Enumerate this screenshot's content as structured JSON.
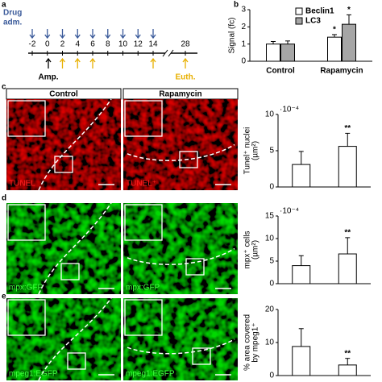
{
  "panel_labels": [
    "a",
    "b",
    "c",
    "d",
    "e"
  ],
  "timeline": {
    "drug_label": [
      "Drug",
      "adm."
    ],
    "ticks": [
      -2,
      0,
      2,
      4,
      6,
      8,
      10,
      12,
      14,
      28
    ],
    "amp_label": "Amp.",
    "euth_label": "Euth."
  },
  "images": {
    "columns": [
      "Control",
      "Rapamycin"
    ],
    "rows": [
      {
        "labels": [
          "TUNEL",
          "TUNEL⁺"
        ]
      },
      {
        "labels": [
          "mpx:GFP",
          "mpx:GFP"
        ]
      },
      {
        "labels": [
          "mpeg1:EGFP",
          "mpeg1:EGFP"
        ]
      }
    ]
  },
  "chart_data": [
    {
      "type": "bar",
      "y_label": [
        "Signal (fc)"
      ],
      "categories": [
        "Control",
        "Rapamycin"
      ],
      "ylim": [
        0,
        3
      ],
      "yticks": [
        0,
        1,
        2,
        3
      ],
      "legend": "top-right",
      "series": [
        {
          "name": "Beclin1",
          "color": "#ffffff",
          "values": [
            1.0,
            1.4
          ],
          "errors": [
            0.15,
            0.15
          ],
          "annotations": [
            null,
            "*"
          ]
        },
        {
          "name": "LC3",
          "color": "#a6a6a6",
          "values": [
            1.0,
            2.15
          ],
          "errors": [
            0.18,
            0.55
          ],
          "annotations": [
            null,
            "*"
          ]
        }
      ]
    },
    {
      "type": "bar",
      "y_label": [
        "Tunel⁺ nuclei",
        "(µm²)"
      ],
      "multiplier": "·10⁻⁴",
      "ylim": [
        0,
        10
      ],
      "yticks": [
        0,
        5,
        10
      ],
      "series": [
        {
          "color": "#ffffff",
          "values": [
            3.1,
            5.6
          ],
          "errors": [
            1.8,
            1.8
          ],
          "annotations": [
            null,
            "**"
          ]
        }
      ]
    },
    {
      "type": "bar",
      "y_label": [
        "mpx⁺ cells",
        "(µm²)"
      ],
      "multiplier": "·10⁻⁴",
      "ylim": [
        0,
        15
      ],
      "yticks": [
        0,
        5,
        10,
        15
      ],
      "series": [
        {
          "color": "#ffffff",
          "values": [
            4.0,
            6.6
          ],
          "errors": [
            2.2,
            3.6
          ],
          "annotations": [
            null,
            "**"
          ]
        }
      ]
    },
    {
      "type": "bar",
      "y_label": [
        "% area covered",
        "by mpeg1⁺"
      ],
      "ylim": [
        0,
        20
      ],
      "yticks": [
        0,
        10,
        20
      ],
      "series": [
        {
          "color": "#ffffff",
          "values": [
            8.8,
            3.2
          ],
          "errors": [
            5.4,
            2.0
          ],
          "annotations": [
            null,
            "**"
          ]
        }
      ]
    }
  ]
}
